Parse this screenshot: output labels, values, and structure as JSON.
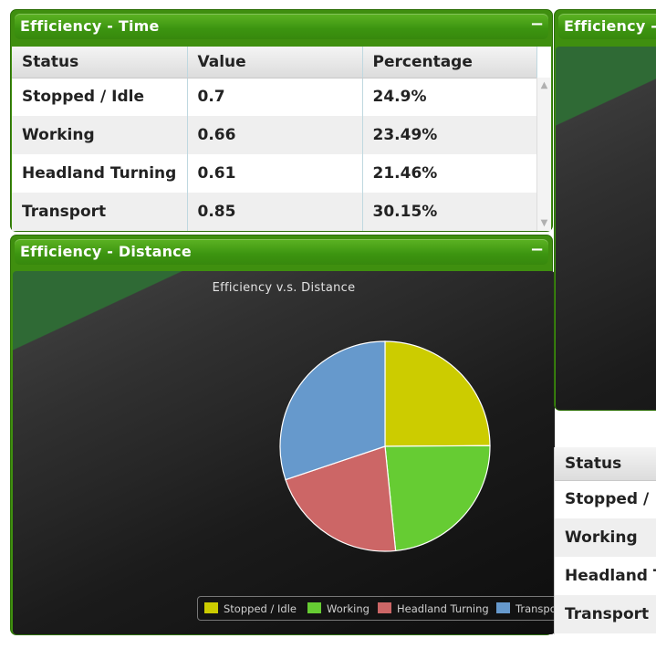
{
  "colors": {
    "panel_green": "#3f8f0f",
    "stopped": "#cccc00",
    "working": "#66cc33",
    "headland": "#cc6666",
    "transport": "#6699cc"
  },
  "time_panel": {
    "title": "Efficiency - Time",
    "collapse_symbol": "−",
    "headers": [
      "Status",
      "Value",
      "Percentage"
    ],
    "rows": [
      {
        "status": "Stopped / Idle",
        "value": "0.7",
        "percentage": "24.9%"
      },
      {
        "status": "Working",
        "value": "0.66",
        "percentage": "23.49%"
      },
      {
        "status": "Headland Turning",
        "value": "0.61",
        "percentage": "21.46%"
      },
      {
        "status": "Transport",
        "value": "0.85",
        "percentage": "30.15%"
      }
    ]
  },
  "distance_panel": {
    "title": "Efficiency - Distance",
    "collapse_symbol": "−"
  },
  "right_panel": {
    "title": "Efficiency - ",
    "headers": [
      "Status"
    ],
    "rows": [
      "Stopped /",
      "Working",
      "Headland T",
      "Transport"
    ]
  },
  "chart_data": {
    "type": "pie",
    "title": "Efficiency v.s. Distance",
    "categories": [
      "Stopped / Idle",
      "Working",
      "Headland Turning",
      "Transport"
    ],
    "values": [
      24.9,
      23.49,
      21.46,
      30.15
    ],
    "colors": [
      "#cccc00",
      "#66cc33",
      "#cc6666",
      "#6699cc"
    ],
    "legend": {
      "position": "bottom",
      "entries": [
        "Stopped / Idle",
        "Working",
        "Headland Turning",
        "Transport"
      ]
    }
  }
}
